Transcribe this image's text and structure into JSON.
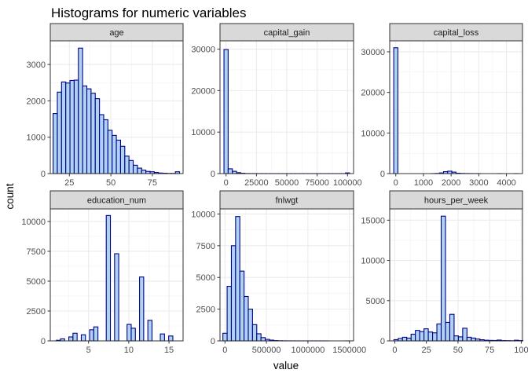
{
  "chart_data": {
    "type": "bar",
    "title": "Histograms for numeric variables",
    "xlabel": "value",
    "ylabel": "count",
    "bar_fill": "#aed2f0",
    "bar_stroke": "#00008b",
    "strip_fill": "#d9d9d9",
    "grid": true,
    "panels": [
      {
        "name": "age",
        "xlim": [
          13.5,
          93.5
        ],
        "ylim": [
          0,
          3650
        ],
        "xticks": [
          25,
          50,
          75
        ],
        "yticks": [
          0,
          1000,
          2000,
          3000
        ],
        "bin_start": 15.2,
        "bin_width": 2.54,
        "values": [
          1650,
          2240,
          2520,
          2490,
          2560,
          2570,
          3450,
          2410,
          2330,
          2210,
          2060,
          1620,
          1480,
          1190,
          1050,
          920,
          750,
          480,
          360,
          230,
          150,
          95,
          60,
          50,
          30,
          15,
          10,
          5,
          5,
          50
        ]
      },
      {
        "name": "capital_gain",
        "xlim": [
          -5000,
          105000
        ],
        "ylim": [
          0,
          32000
        ],
        "xticks": [
          0,
          25000,
          50000,
          75000,
          100000
        ],
        "yticks": [
          0,
          10000,
          20000,
          30000
        ],
        "bin_start": -1724,
        "bin_width": 3448,
        "values": [
          29900,
          1150,
          550,
          220,
          80,
          20,
          10,
          8,
          5,
          3,
          2,
          2,
          2,
          2,
          2,
          2,
          2,
          2,
          2,
          2,
          2,
          2,
          2,
          2,
          2,
          2,
          2,
          2,
          5,
          160
        ]
      },
      {
        "name": "capital_loss",
        "xlim": [
          -220,
          4580
        ],
        "ylim": [
          0,
          32700
        ],
        "xticks": [
          0,
          1000,
          2000,
          3000,
          4000
        ],
        "yticks": [
          0,
          10000,
          20000,
          30000
        ],
        "bin_start": -75,
        "bin_width": 150.1,
        "values": [
          31000,
          0,
          0,
          0,
          0,
          0,
          0,
          0,
          0,
          5,
          40,
          160,
          470,
          590,
          360,
          90,
          40,
          20,
          10,
          5,
          3,
          0,
          0,
          0,
          0,
          2,
          0,
          0,
          0,
          3
        ]
      },
      {
        "name": "education_num",
        "xlim": [
          0.25,
          16.75
        ],
        "ylim": [
          0,
          11050
        ],
        "xticks": [
          5,
          10,
          15
        ],
        "yticks": [
          0,
          2500,
          5000,
          7500,
          10000
        ],
        "bin_start": 1,
        "bin_width": 0.517,
        "values": [
          50,
          170,
          0,
          330,
          640,
          0,
          510,
          0,
          930,
          1170,
          0,
          0,
          10500,
          0,
          7300,
          0,
          0,
          1380,
          1060,
          0,
          5350,
          0,
          1720,
          0,
          0,
          580,
          0,
          410
        ]
      },
      {
        "name": "fnlwgt",
        "xlim": [
          -60000,
          1550000
        ],
        "ylim": [
          0,
          10400
        ],
        "xticks": [
          0,
          500000,
          1000000,
          1500000
        ],
        "yticks": [
          0,
          2500,
          5000,
          7500,
          10000
        ],
        "bin_start": -25000,
        "bin_width": 51000,
        "values": [
          600,
          4300,
          7500,
          9800,
          5500,
          3500,
          2500,
          1280,
          560,
          260,
          120,
          60,
          25,
          12,
          6,
          3,
          2,
          2,
          1,
          1,
          1,
          1,
          1,
          1,
          1,
          0,
          0,
          0,
          0,
          1
        ]
      },
      {
        "name": "hours_per_week",
        "xlim": [
          -4,
          101
        ],
        "ylim": [
          0,
          16400
        ],
        "xticks": [
          0,
          25,
          50,
          75,
          100
        ],
        "yticks": [
          0,
          5000,
          10000,
          15000
        ],
        "bin_start": -0.7,
        "bin_width": 3.4,
        "values": [
          150,
          300,
          450,
          340,
          830,
          1300,
          1150,
          1500,
          1100,
          1000,
          2100,
          15500,
          2300,
          3300,
          620,
          500,
          1570,
          450,
          350,
          230,
          140,
          80,
          60,
          50,
          100,
          40,
          30,
          20,
          80,
          40
        ]
      }
    ]
  }
}
